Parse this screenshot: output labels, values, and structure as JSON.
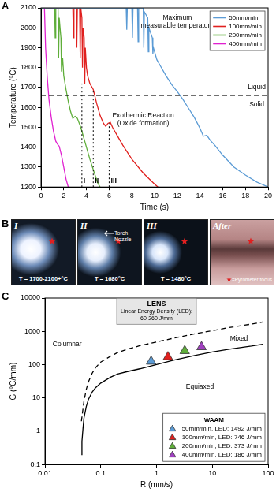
{
  "chart_data": [
    {
      "panel": "A",
      "type": "line",
      "x_label": "Time (s)",
      "y_label": "Temperature (°C)",
      "xlim": [
        0,
        20
      ],
      "xticks": [
        0,
        2,
        4,
        6,
        8,
        10,
        12,
        14,
        16,
        18,
        20
      ],
      "ylim": [
        1200,
        2100
      ],
      "yticks": [
        1200,
        1300,
        1400,
        1500,
        1600,
        1700,
        1800,
        1900,
        2000,
        2100
      ],
      "grid": false,
      "legend": "upper right",
      "series": [
        {
          "name": "50mm/min",
          "color": "#5b9bd5",
          "x": [
            0,
            2,
            4,
            6,
            7.5,
            7.55,
            7.6,
            8.0,
            8.05,
            8.1,
            8.5,
            8.55,
            8.6,
            9.0,
            9.05,
            9.1,
            9.4,
            9.45,
            9.5,
            9.8,
            9.85,
            9.9,
            10.2,
            10.6,
            11,
            11.5,
            12,
            12.5,
            13,
            13.5,
            14,
            14.3,
            14.6,
            14.9,
            15.3,
            16,
            17,
            18,
            19,
            20
          ],
          "values": [
            2100,
            2100,
            2100,
            2100,
            2100,
            1990,
            2100,
            2100,
            1950,
            2100,
            2100,
            1930,
            2100,
            2100,
            1900,
            2080,
            2050,
            1880,
            2000,
            1950,
            1870,
            1900,
            1840,
            1800,
            1760,
            1715,
            1680,
            1640,
            1595,
            1550,
            1495,
            1455,
            1460,
            1435,
            1410,
            1360,
            1300,
            1260,
            1225,
            1200
          ]
        },
        {
          "name": "100mm/min",
          "color": "#e0201e",
          "x": [
            0,
            1,
            2,
            2.8,
            2.85,
            2.9,
            3.1,
            3.15,
            3.2,
            3.4,
            3.45,
            3.5,
            3.6,
            3.65,
            3.7,
            3.8,
            3.85,
            3.9,
            4.0,
            4.1,
            4.3,
            4.6,
            4.9,
            5.2,
            5.5,
            5.7,
            5.9,
            6.1,
            6.3,
            6.7,
            7.2,
            8,
            9,
            10,
            10.3
          ],
          "values": [
            2100,
            2100,
            2100,
            2100,
            1950,
            2100,
            2100,
            1900,
            2100,
            2100,
            1850,
            2100,
            2050,
            1800,
            2000,
            1950,
            1720,
            1900,
            1800,
            1760,
            1720,
            1690,
            1620,
            1560,
            1520,
            1505,
            1520,
            1525,
            1500,
            1460,
            1410,
            1340,
            1270,
            1215,
            1200
          ]
        },
        {
          "name": "200mm/min",
          "color": "#5fae3a",
          "x": [
            0,
            0.6,
            1.2,
            1.25,
            1.3,
            1.5,
            1.55,
            1.6,
            1.75,
            1.8,
            1.9,
            2.0,
            2.2,
            2.4,
            2.6,
            2.8,
            3.0,
            3.2,
            3.5,
            3.9,
            4.3,
            4.7,
            5.0,
            5.2
          ],
          "values": [
            2100,
            2100,
            2100,
            1950,
            2100,
            2100,
            1850,
            2050,
            1950,
            1780,
            1850,
            1760,
            1690,
            1630,
            1580,
            1545,
            1555,
            1545,
            1500,
            1420,
            1340,
            1270,
            1220,
            1200
          ]
        },
        {
          "name": "400mm/min",
          "color": "#e020d0",
          "x": [
            0,
            0.3,
            0.4,
            0.55,
            0.7,
            0.9,
            1.1,
            1.3,
            1.45,
            1.6,
            1.8,
            2.0,
            2.2,
            2.4
          ],
          "values": [
            2100,
            2100,
            1900,
            1750,
            1640,
            1550,
            1480,
            1430,
            1415,
            1405,
            1360,
            1300,
            1240,
            1200
          ]
        }
      ],
      "hlines": [
        {
          "y": 1660,
          "line_style": "dashed"
        }
      ],
      "vlines": [
        {
          "x": 3.6,
          "y_end": 1720,
          "label": "I",
          "line_style": "dotted"
        },
        {
          "x": 4.6,
          "y_end": 1690,
          "label": "II",
          "line_style": "dotted"
        },
        {
          "x": 6.0,
          "y_end": 1520,
          "label": "III",
          "line_style": "dotted"
        }
      ],
      "annotations": [
        {
          "text": [
            "Maximum",
            "measurable temperature"
          ],
          "x": 12,
          "y": 2050
        },
        {
          "text": [
            "Liquid"
          ],
          "x": 19,
          "y": 1700
        },
        {
          "text": [
            "Solid"
          ],
          "x": 19,
          "y": 1615
        },
        {
          "text": [
            "Exothermic Reaction",
            "(Oxide formation)"
          ],
          "x": 9,
          "y": 1560
        }
      ]
    },
    {
      "panel": "C",
      "type": "scatter",
      "x_label": "R (mm/s)",
      "y_label": "G (°C/mm)",
      "log": true,
      "xlim": [
        0.01,
        100
      ],
      "xticks": [
        0.01,
        0.1,
        1,
        10,
        100
      ],
      "ylim": [
        0.1,
        10000
      ],
      "yticks": [
        0.1,
        1,
        10,
        100,
        1000,
        10000
      ],
      "grid": false,
      "legend": "lower right",
      "legend_title": "WAAM",
      "series": [
        {
          "type": "line",
          "color": "#000000",
          "line_style": "solid",
          "x": [
            0.045,
            0.046,
            0.048,
            0.05,
            0.055,
            0.06,
            0.07,
            0.08,
            0.1,
            0.15,
            0.2,
            0.3,
            0.5,
            1,
            2,
            5,
            10,
            20,
            50,
            80
          ],
          "values": [
            0.2,
            0.5,
            1.2,
            2.5,
            5.5,
            9,
            15,
            20,
            28,
            42,
            52,
            62,
            75,
            100,
            135,
            190,
            240,
            290,
            360,
            410
          ]
        },
        {
          "type": "line",
          "color": "#000000",
          "line_style": "dashed",
          "x": [
            0.045,
            0.05,
            0.055,
            0.06,
            0.07,
            0.08,
            0.1,
            0.15,
            0.2,
            0.3,
            0.5,
            1,
            2,
            5,
            10,
            20,
            50,
            80
          ],
          "values": [
            2,
            8,
            18,
            30,
            55,
            80,
            120,
            180,
            230,
            290,
            370,
            480,
            620,
            850,
            1050,
            1300,
            1650,
            1900
          ]
        },
        {
          "name": "50mm/min, LED: 1492 J/mm",
          "color": "#5b9bd5",
          "marker": "triangle",
          "x": [
            0.8
          ],
          "values": [
            125
          ]
        },
        {
          "name": "100mm/min, LED: 746 J/mm",
          "color": "#e0201e",
          "marker": "triangle",
          "x": [
            1.6
          ],
          "values": [
            170
          ]
        },
        {
          "name": "200mm/min, LED: 373 J/mm",
          "color": "#5fae3a",
          "marker": "triangle",
          "x": [
            3.2
          ],
          "values": [
            260
          ]
        },
        {
          "name": "400mm/min, LED: 186 J/mm",
          "color": "#a040c0",
          "marker": "triangle",
          "x": [
            6.4
          ],
          "values": [
            340
          ]
        }
      ],
      "annotations": [
        {
          "text": [
            "Columnar"
          ],
          "x": 0.025,
          "y": 400
        },
        {
          "text": [
            "Mixed"
          ],
          "x": 30,
          "y": 600
        },
        {
          "text": [
            "Equiaxed"
          ],
          "x": 6,
          "y": 22
        }
      ],
      "text_box": {
        "text": [
          "LENS",
          "Linear Energy Density (LED):",
          "60-260 J/mm"
        ],
        "x": 1,
        "y": 4000
      }
    }
  ],
  "photo_panel": {
    "panel": "B",
    "photos": [
      {
        "label": "I",
        "caption": "T = 1700-2100+°C"
      },
      {
        "label": "II",
        "caption": "T = 1680°C",
        "pointer": "Torch Nozzle"
      },
      {
        "label": "III",
        "caption": "T = 1480°C"
      },
      {
        "label": "After",
        "key": "=Pyrometer focus"
      }
    ]
  }
}
